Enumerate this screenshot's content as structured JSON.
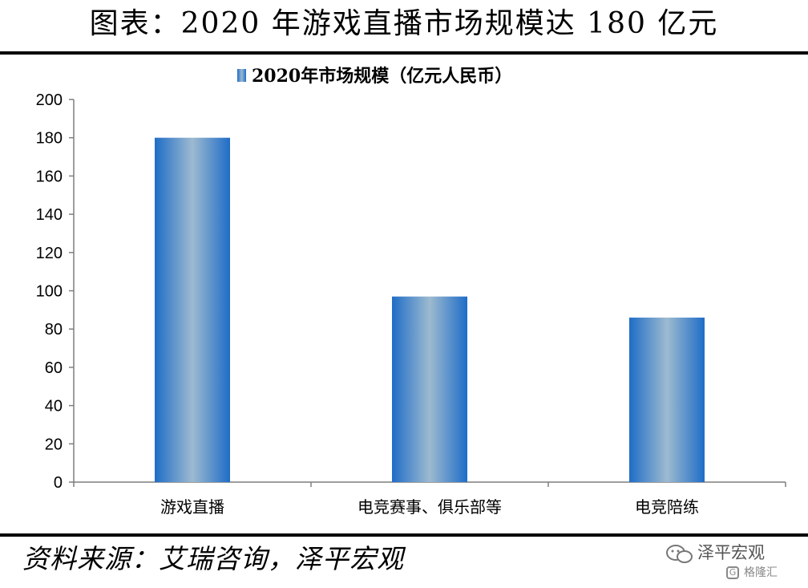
{
  "figure_title": "图表：2020 年游戏直播市场规模达 180 亿元",
  "source_text": "资料来源：艾瑞咨询，泽平宏观",
  "watermark": {
    "main": "泽平宏观",
    "sub": "格隆汇",
    "g_letter": "G",
    "icon": "wechat-icon"
  },
  "colors": {
    "bar_edge": "#1F6DC7",
    "bar_center": "#9DBAD0",
    "axis": "#7F7F7F"
  },
  "chart_data": {
    "type": "bar",
    "legend_position": "top-center",
    "categories": [
      "游戏直播",
      "电竞赛事、俱乐部等",
      "电竞陪练"
    ],
    "series": [
      {
        "name": "2020年市场规模（亿元人民币）",
        "values": [
          180,
          97,
          86
        ]
      }
    ],
    "ylim": [
      0,
      200
    ],
    "yticks": [
      0,
      20,
      40,
      60,
      80,
      100,
      120,
      140,
      160,
      180,
      200
    ],
    "grid": false
  }
}
